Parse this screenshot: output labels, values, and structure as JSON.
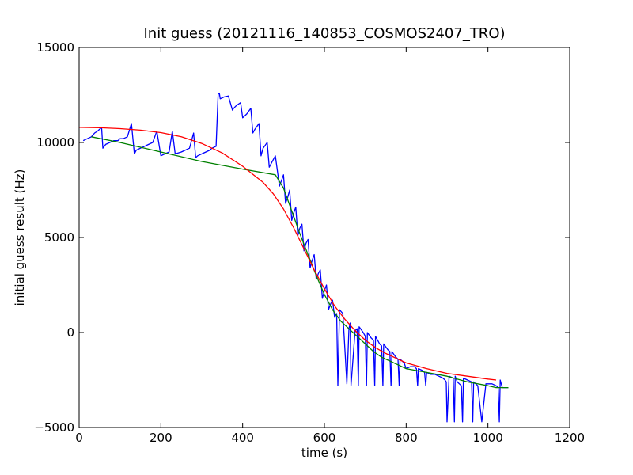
{
  "chart_data": {
    "type": "line",
    "title": "Init guess (20121116_140853_COSMOS2407_TRO)",
    "xlabel": "time (s)",
    "ylabel": "initial guess result (Hz)",
    "xlim": [
      0,
      1200
    ],
    "ylim": [
      -5000,
      15000
    ],
    "xticks": [
      0,
      200,
      400,
      600,
      800,
      1000,
      1200
    ],
    "yticks": [
      -5000,
      0,
      5000,
      10000,
      15000
    ],
    "xtick_labels": [
      "0",
      "200",
      "400",
      "600",
      "800",
      "1000",
      "1200"
    ],
    "ytick_labels": [
      "−5000",
      "0",
      "5000",
      "10000",
      "15000"
    ],
    "grid": false,
    "series": [
      {
        "color": "#0000ff",
        "x": [
          10,
          20,
          30,
          38,
          45,
          55,
          58,
          65,
          75,
          85,
          95,
          100,
          108,
          118,
          128,
          135,
          140,
          150,
          160,
          170,
          180,
          190,
          200,
          210,
          220,
          228,
          235,
          250,
          260,
          270,
          280,
          285,
          290,
          300,
          310,
          320,
          325,
          335,
          340,
          343,
          345,
          355,
          365,
          375,
          378,
          385,
          395,
          400,
          410,
          420,
          425,
          430,
          440,
          445,
          450,
          460,
          465,
          470,
          480,
          490,
          495,
          500,
          505,
          510,
          515,
          520,
          525,
          530,
          535,
          540,
          545,
          550,
          555,
          560,
          565,
          570,
          575,
          580,
          585,
          590,
          595,
          600,
          605,
          610,
          615,
          620,
          625,
          630,
          633,
          637,
          645,
          655,
          660,
          663,
          665,
          675,
          680,
          683,
          685,
          695,
          700,
          703,
          705,
          715,
          720,
          723,
          725,
          735,
          740,
          743,
          745,
          755,
          760,
          763,
          765,
          775,
          780,
          783,
          785,
          795,
          800,
          810,
          820,
          825,
          828,
          830,
          840,
          845,
          848,
          850,
          860,
          870,
          880,
          890,
          895,
          898,
          900,
          905,
          915,
          918,
          920,
          925,
          935,
          938,
          940,
          950,
          960,
          963,
          965,
          975,
          985,
          995,
          1010,
          1020,
          1025,
          1028,
          1030,
          1035,
          1040,
          1050
        ],
        "y": [
          10100,
          10200,
          10300,
          10500,
          10600,
          10800,
          9700,
          9900,
          10000,
          10100,
          10100,
          10200,
          10200,
          10300,
          11000,
          9400,
          9600,
          9700,
          9800,
          9900,
          10000,
          10600,
          9300,
          9400,
          9500,
          10600,
          9400,
          9500,
          9600,
          9700,
          10500,
          9200,
          9300,
          9400,
          9500,
          9600,
          9700,
          9800,
          12550,
          12600,
          12300,
          12400,
          12450,
          11700,
          11800,
          11950,
          12100,
          11300,
          11500,
          11800,
          10500,
          10700,
          11000,
          9300,
          9700,
          10000,
          8700,
          8900,
          9300,
          7700,
          8000,
          8300,
          6800,
          7100,
          7500,
          5900,
          6300,
          6600,
          5100,
          5500,
          5700,
          4300,
          4700,
          4900,
          3400,
          3800,
          4100,
          2800,
          3100,
          3300,
          1800,
          2200,
          2500,
          1200,
          1500,
          1700,
          800,
          1000,
          -2800,
          1200,
          1000,
          -2700,
          200,
          500,
          -2800,
          100,
          200,
          -2800,
          300,
          0,
          -200,
          -2800,
          0,
          -300,
          -400,
          -2800,
          -200,
          -600,
          -700,
          -2800,
          -600,
          -900,
          -1000,
          -2800,
          -1000,
          -1300,
          -1400,
          -2800,
          -1400,
          -1600,
          -1900,
          -1800,
          -1800,
          -1900,
          -2800,
          -1900,
          -2000,
          -2100,
          -2800,
          -2100,
          -2200,
          -2200,
          -2300,
          -2400,
          -2500,
          -2600,
          -4700,
          -2300,
          -2400,
          -4700,
          -2300,
          -2600,
          -2800,
          -4700,
          -2400,
          -2500,
          -2600,
          -4700,
          -2600,
          -2800,
          -4700,
          -2700,
          -2700,
          -2800,
          -2900,
          -4700,
          -2500,
          -2900,
          -2900,
          -2900
        ]
      },
      {
        "color": "#008000",
        "x": [
          30,
          100,
          200,
          300,
          400,
          480,
          500,
          520,
          540,
          560,
          580,
          600,
          620,
          640,
          660,
          680,
          700,
          720,
          740,
          760,
          780,
          800,
          850,
          900,
          950,
          1000,
          1020,
          1050
        ],
        "y": [
          10300,
          10000,
          9500,
          9000,
          8600,
          8300,
          7600,
          6400,
          5200,
          4100,
          3000,
          2000,
          1200,
          600,
          200,
          -200,
          -600,
          -1000,
          -1300,
          -1500,
          -1700,
          -1900,
          -2100,
          -2300,
          -2600,
          -2800,
          -2900,
          -2900
        ]
      },
      {
        "color": "#ff0000",
        "x": [
          0,
          50,
          100,
          150,
          200,
          250,
          300,
          350,
          400,
          450,
          475,
          500,
          525,
          550,
          575,
          600,
          625,
          650,
          675,
          700,
          725,
          750,
          800,
          850,
          900,
          950,
          1000,
          1020
        ],
        "y": [
          10800,
          10780,
          10730,
          10650,
          10520,
          10300,
          9950,
          9450,
          8750,
          7900,
          7300,
          6500,
          5500,
          4400,
          3300,
          2300,
          1400,
          700,
          100,
          -400,
          -800,
          -1100,
          -1600,
          -1900,
          -2150,
          -2300,
          -2450,
          -2500
        ]
      }
    ]
  }
}
